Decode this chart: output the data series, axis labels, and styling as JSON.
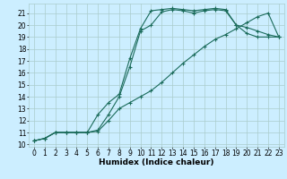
{
  "xlabel": "Humidex (Indice chaleur)",
  "bg_color": "#cceeff",
  "grid_color": "#aacccc",
  "line_color": "#1a6b5a",
  "xlim": [
    -0.5,
    23.5
  ],
  "ylim": [
    9.8,
    21.8
  ],
  "yticks": [
    10,
    11,
    12,
    13,
    14,
    15,
    16,
    17,
    18,
    19,
    20,
    21
  ],
  "xticks": [
    0,
    1,
    2,
    3,
    4,
    5,
    6,
    7,
    8,
    9,
    10,
    11,
    12,
    13,
    14,
    15,
    16,
    17,
    18,
    19,
    20,
    21,
    22,
    23
  ],
  "line1_x": [
    0,
    1,
    2,
    3,
    4,
    5,
    6,
    7,
    8,
    9,
    10,
    11,
    12,
    13,
    14,
    15,
    16,
    17,
    18,
    19,
    20,
    21,
    22,
    23
  ],
  "line1_y": [
    10.3,
    10.5,
    11.0,
    11.0,
    11.0,
    11.0,
    11.1,
    12.0,
    13.0,
    13.5,
    14.0,
    14.5,
    15.2,
    16.0,
    16.8,
    17.5,
    18.2,
    18.8,
    19.2,
    19.7,
    20.2,
    20.7,
    21.0,
    19.0
  ],
  "line2_x": [
    0,
    1,
    2,
    3,
    4,
    5,
    6,
    7,
    8,
    9,
    10,
    11,
    12,
    13,
    14,
    15,
    16,
    17,
    18,
    19,
    20,
    21,
    22,
    23
  ],
  "line2_y": [
    10.3,
    10.5,
    11.0,
    11.0,
    11.0,
    11.0,
    11.2,
    12.5,
    14.0,
    16.5,
    19.5,
    20.0,
    21.1,
    21.3,
    21.2,
    21.0,
    21.2,
    21.3,
    21.2,
    20.0,
    19.8,
    19.5,
    19.2,
    19.0
  ],
  "line3_x": [
    0,
    1,
    2,
    3,
    4,
    5,
    6,
    7,
    8,
    9,
    10,
    11,
    12,
    13,
    14,
    15,
    16,
    17,
    18,
    19,
    20,
    21,
    22,
    23
  ],
  "line3_y": [
    10.3,
    10.5,
    11.0,
    11.0,
    11.0,
    11.0,
    12.5,
    13.5,
    14.2,
    17.2,
    19.7,
    21.2,
    21.3,
    21.4,
    21.3,
    21.2,
    21.3,
    21.4,
    21.3,
    20.0,
    19.3,
    19.0,
    19.0,
    19.0
  ],
  "marker": "+",
  "markersize": 3,
  "linewidth": 0.8,
  "tick_fontsize": 5.5,
  "xlabel_fontsize": 6.5
}
